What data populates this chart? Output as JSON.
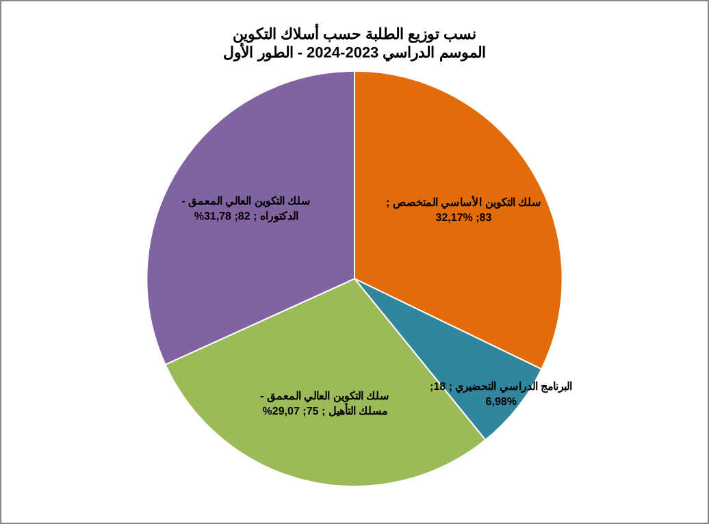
{
  "chart_data": {
    "type": "pie",
    "title": "نسب توزيع الطلبة حسب أسلاك التكوين",
    "subtitle": "الموسم الدراسي 2023-2024 - الطور الأول",
    "categories": [
      "سلك التكوين الأساسي المتخصص",
      "البرنامج الدراسي التحضيري",
      "سلك التكوين العالي المعمق - مسلك التأهيل",
      "سلك التكوين العالي المعمق - الدكتوراه"
    ],
    "values": [
      83,
      18,
      75,
      82
    ],
    "value_labels": [
      "; 83; 32,17%",
      "; 18; 6,98%",
      "; 75; 29,07%",
      "; 82; 31,78%"
    ],
    "colors": [
      "#e36c0a",
      "#31859c",
      "#9bbb59",
      "#8064a2"
    ],
    "legend": false
  }
}
